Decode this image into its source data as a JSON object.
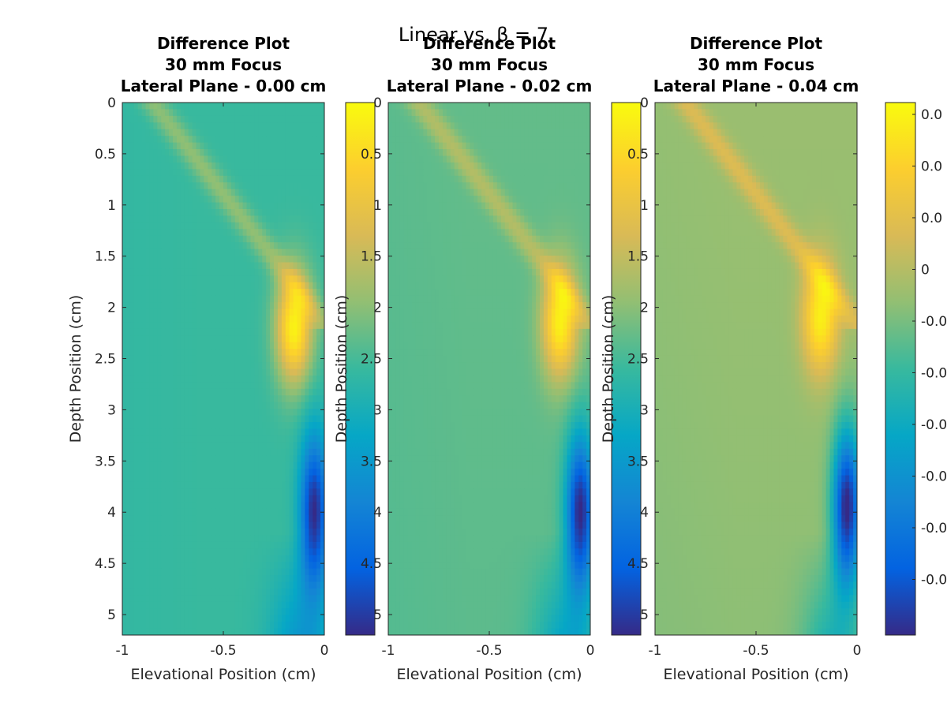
{
  "figure": {
    "suptitle": "Linear vs. β = 7"
  },
  "colors": {
    "axis": "#262626",
    "colormap": [
      "#352a87",
      "#0363e1",
      "#1485d4",
      "#06a7c6",
      "#38b99e",
      "#92bf73",
      "#d9ba56",
      "#fcce2e",
      "#f9fb0e"
    ]
  },
  "chart_data": [
    {
      "type": "heatmap",
      "title": [
        "Difference Plot",
        "30 mm Focus",
        "Lateral Plane - 0.00 cm"
      ],
      "xlabel": "Elevational Position (cm)",
      "ylabel": "Depth Position (cm)",
      "xlim": [
        -1,
        0
      ],
      "ylim": [
        0,
        5.2
      ],
      "y_reversed": true,
      "xticks": [
        -1,
        -0.5,
        0
      ],
      "xtick_labels": [
        "-1",
        "-0.5",
        "0"
      ],
      "yticks": [
        0,
        0.5,
        1,
        1.5,
        2,
        2.5,
        3,
        3.5,
        4,
        4.5,
        5
      ],
      "ytick_labels": [
        "0",
        "0.5",
        "1",
        "1.5",
        "2",
        "2.5",
        "3",
        "3.5",
        "4",
        "4.5",
        "5"
      ],
      "field": {
        "baseline": 0.0,
        "positive_hotspot": {
          "x": -0.15,
          "depth": 2.2,
          "peak": 0.95
        },
        "negative_hotspot": {
          "x": -0.05,
          "depth": 4.0,
          "peak": -1.0
        },
        "sidelobe_level": 0.25
      },
      "colorbar": {
        "clim": [
          -1,
          1
        ],
        "tick_labels": []
      }
    },
    {
      "type": "heatmap",
      "title": [
        "Difference Plot",
        "30 mm Focus",
        "Lateral Plane - 0.02 cm"
      ],
      "xlabel": "Elevational Position (cm)",
      "ylabel": "Depth Position (cm)",
      "xlim": [
        -1,
        0
      ],
      "ylim": [
        0,
        5.2
      ],
      "y_reversed": true,
      "xticks": [
        -1,
        -0.5,
        0
      ],
      "xtick_labels": [
        "-1",
        "-0.5",
        "0"
      ],
      "yticks": [
        0,
        0.5,
        1,
        1.5,
        2,
        2.5,
        3,
        3.5,
        4,
        4.5,
        5
      ],
      "ytick_labels": [
        "0",
        "0.5",
        "1",
        "1.5",
        "2",
        "2.5",
        "3",
        "3.5",
        "4",
        "4.5",
        "5"
      ],
      "field": {
        "baseline": 0.12,
        "positive_hotspot": {
          "x": -0.15,
          "depth": 2.15,
          "peak": 0.95
        },
        "negative_hotspot": {
          "x": -0.05,
          "depth": 4.0,
          "peak": -1.0
        },
        "sidelobe_level": 0.25
      },
      "colorbar": {
        "clim": [
          -1,
          1
        ],
        "tick_labels": []
      }
    },
    {
      "type": "heatmap",
      "title": [
        "Difference Plot",
        "30 mm Focus",
        "Lateral Plane - 0.04 cm"
      ],
      "xlabel": "Elevational Position (cm)",
      "ylabel": "Depth Position (cm)",
      "xlim": [
        -1,
        0
      ],
      "ylim": [
        0,
        5.2
      ],
      "y_reversed": true,
      "xticks": [
        -1,
        -0.5,
        0
      ],
      "xtick_labels": [
        "-1",
        "-0.5",
        "0"
      ],
      "yticks": [
        0,
        0.5,
        1,
        1.5,
        2,
        2.5,
        3,
        3.5,
        4,
        4.5,
        5
      ],
      "ytick_labels": [
        "0",
        "0.5",
        "1",
        "1.5",
        "2",
        "2.5",
        "3",
        "3.5",
        "4",
        "4.5",
        "5"
      ],
      "field": {
        "baseline": 0.28,
        "positive_hotspot": {
          "x": -0.18,
          "depth": 2.1,
          "peak": 0.95
        },
        "negative_hotspot": {
          "x": -0.05,
          "depth": 3.95,
          "peak": -1.0
        },
        "sidelobe_level": 0.25
      },
      "colorbar": {
        "clim": [
          -1,
          1
        ],
        "tick_labels": [
          "0.0",
          "0.0",
          "0.0",
          "0",
          "-0.0",
          "-0.0",
          "-0.0",
          "-0.0",
          "-0.0",
          "-0.0"
        ]
      }
    }
  ]
}
